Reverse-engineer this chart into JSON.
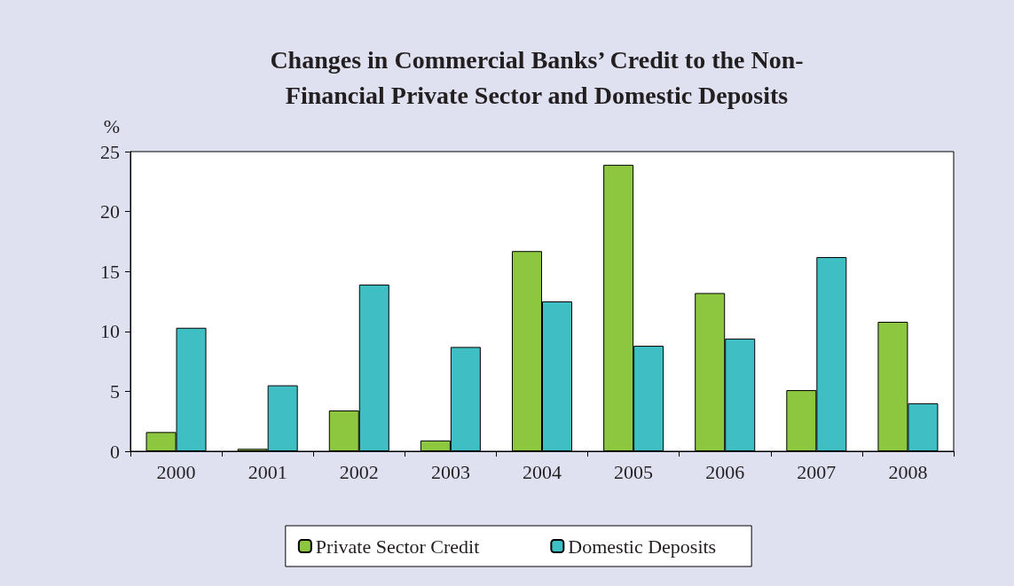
{
  "chart_data": {
    "type": "bar",
    "title": "Changes in Commercial Banks’ Credit to the Non-\nFinancial Private Sector and Domestic Deposits",
    "ylabel": "%",
    "categories": [
      "2000",
      "2001",
      "2002",
      "2003",
      "2004",
      "2005",
      "2006",
      "2007",
      "2008"
    ],
    "series": [
      {
        "name": "Private Sector Credit",
        "color": "#8dc63f",
        "values": [
          1.6,
          0.2,
          3.4,
          0.9,
          16.7,
          23.9,
          13.2,
          5.1,
          10.8
        ]
      },
      {
        "name": "Domestic Deposits",
        "color": "#3fbfc4",
        "values": [
          10.3,
          5.5,
          13.9,
          8.7,
          12.5,
          8.8,
          9.4,
          16.2,
          4.0
        ]
      }
    ],
    "ylim": [
      0,
      25
    ],
    "yticks": [
      0,
      5,
      10,
      15,
      20,
      25
    ],
    "grid": false,
    "legend": "bottom"
  }
}
